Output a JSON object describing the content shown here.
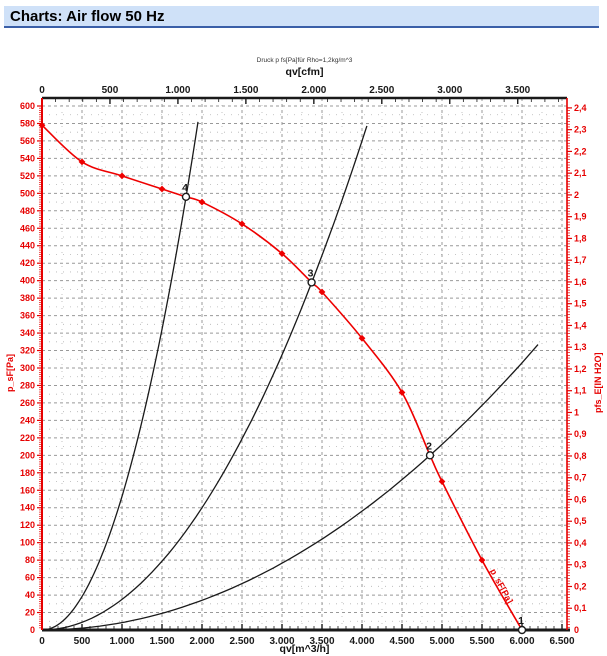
{
  "header": {
    "title": "Charts: Air flow 50 Hz"
  },
  "colors": {
    "header_bg": "#cfe1f8",
    "header_border": "#3a5fa8",
    "axis_red": "#e60000",
    "curve_red": "#ee0000",
    "black": "#1a1a1a",
    "grid_major": "#999999",
    "grid_minor": "#b4b4b4"
  },
  "chart_data": {
    "type": "line",
    "subtitle": "Druck p fs[Pa]für Rho=1,2kg/m^3",
    "top_axis": {
      "label": "qv[cfm]",
      "tick_labels": [
        "0",
        "500",
        "1.000",
        "1.500",
        "2.000",
        "2.500",
        "3.000",
        "3.500"
      ],
      "major_step": 500,
      "minor_step": 100,
      "m3h_per_cfm": 1.699
    },
    "bottom_axis": {
      "label": "qv[m^3/h]",
      "tick_labels": [
        "0",
        "500",
        "1.000",
        "1.500",
        "2.000",
        "2.500",
        "3.000",
        "3.500",
        "4.000",
        "4.500",
        "5.000",
        "5.500",
        "6.000",
        "6.500"
      ],
      "major_step": 500,
      "minor_step": 100,
      "min": 0,
      "max": 6562
    },
    "left_axis": {
      "label": "p_sF[Pa]",
      "tick_labels": [
        "0",
        "20",
        "40",
        "60",
        "80",
        "100",
        "120",
        "140",
        "160",
        "180",
        "200",
        "220",
        "240",
        "260",
        "280",
        "300",
        "320",
        "340",
        "360",
        "380",
        "400",
        "420",
        "440",
        "460",
        "480",
        "500",
        "520",
        "540",
        "560",
        "580",
        "600"
      ],
      "major_step": 20,
      "minor_step": 2.5,
      "min": 0,
      "max": 600
    },
    "right_axis": {
      "label": "pfs_E[IN H2O]",
      "tick_labels": [
        "0",
        "0,1",
        "0,2",
        "0,3",
        "0,4",
        "0,5",
        "0,6",
        "0,7",
        "0,8",
        "0,9",
        "1",
        "1,1",
        "1,2",
        "1,3",
        "1,4",
        "1,5",
        "1,6",
        "1,7",
        "1,8",
        "1,9",
        "2",
        "2,1",
        "2,2",
        "2,3",
        "2,4"
      ],
      "major_step": 0.1,
      "minor_step": 0.0125,
      "pa_per_unit": 249.089,
      "max": 2.4
    },
    "fan_curve": {
      "label": "p_sF[Pa]",
      "points": [
        [
          0,
          578
        ],
        [
          500,
          536
        ],
        [
          1000,
          520
        ],
        [
          1500,
          505
        ],
        [
          2000,
          490
        ],
        [
          2500,
          465
        ],
        [
          3000,
          431
        ],
        [
          3500,
          387
        ],
        [
          4000,
          334
        ],
        [
          4500,
          272
        ],
        [
          5000,
          170
        ],
        [
          5500,
          80
        ],
        [
          6000,
          0
        ]
      ]
    },
    "system_curves": [
      {
        "name": "system-curve-through-4",
        "k": 0.000153,
        "qv_end": 1950
      },
      {
        "name": "system-curve-through-3",
        "k": 3.5e-05,
        "qv_end": 4130
      },
      {
        "name": "system-curve-through-2",
        "k": 8.5e-06,
        "qv_end": 6200
      }
    ],
    "operating_points": [
      {
        "label": "1",
        "qv": 6000,
        "p": 0
      },
      {
        "label": "2",
        "qv": 4850,
        "p": 200
      },
      {
        "label": "3",
        "qv": 3370,
        "p": 398
      },
      {
        "label": "4",
        "qv": 1800,
        "p": 496
      }
    ]
  }
}
